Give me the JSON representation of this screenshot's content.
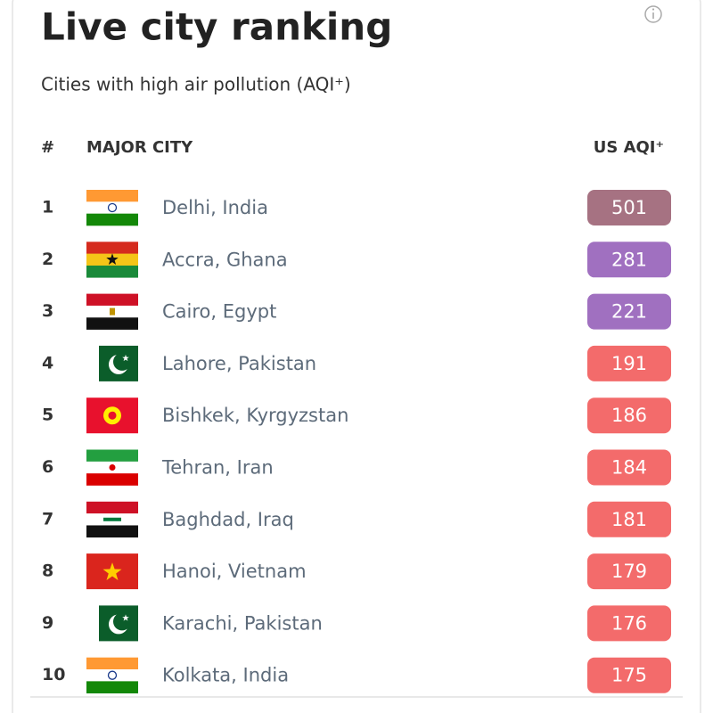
{
  "header": {
    "title": "Live city ranking",
    "subtitle": "Cities with high air pollution (AQI⁺)"
  },
  "table": {
    "columns": [
      "#",
      "MAJOR CITY",
      "US AQI⁺"
    ],
    "rows": [
      {
        "rank": 1,
        "city": "Delhi, India",
        "aqi": 501,
        "color": "#a67282"
      },
      {
        "rank": 2,
        "city": "Accra, Ghana",
        "aqi": 281,
        "color": "#a070c0"
      },
      {
        "rank": 3,
        "city": "Cairo, Egypt",
        "aqi": 221,
        "color": "#a070c0"
      },
      {
        "rank": 4,
        "city": "Lahore, Pakistan",
        "aqi": 191,
        "color": "#f36b6b"
      },
      {
        "rank": 5,
        "city": "Bishkek, Kyrgyzstan",
        "aqi": 186,
        "color": "#f36b6b"
      },
      {
        "rank": 6,
        "city": "Tehran, Iran",
        "aqi": 184,
        "color": "#f36b6b"
      },
      {
        "rank": 7,
        "city": "Baghdad, Iraq",
        "aqi": 181,
        "color": "#f36b6b"
      },
      {
        "rank": 8,
        "city": "Hanoi, Vietnam",
        "aqi": 179,
        "color": "#f36b6b"
      },
      {
        "rank": 9,
        "city": "Karachi, Pakistan",
        "aqi": 176,
        "color": "#f36b6b"
      },
      {
        "rank": 10,
        "city": "Kolkata, India",
        "aqi": 175,
        "color": "#f36b6b"
      }
    ]
  }
}
